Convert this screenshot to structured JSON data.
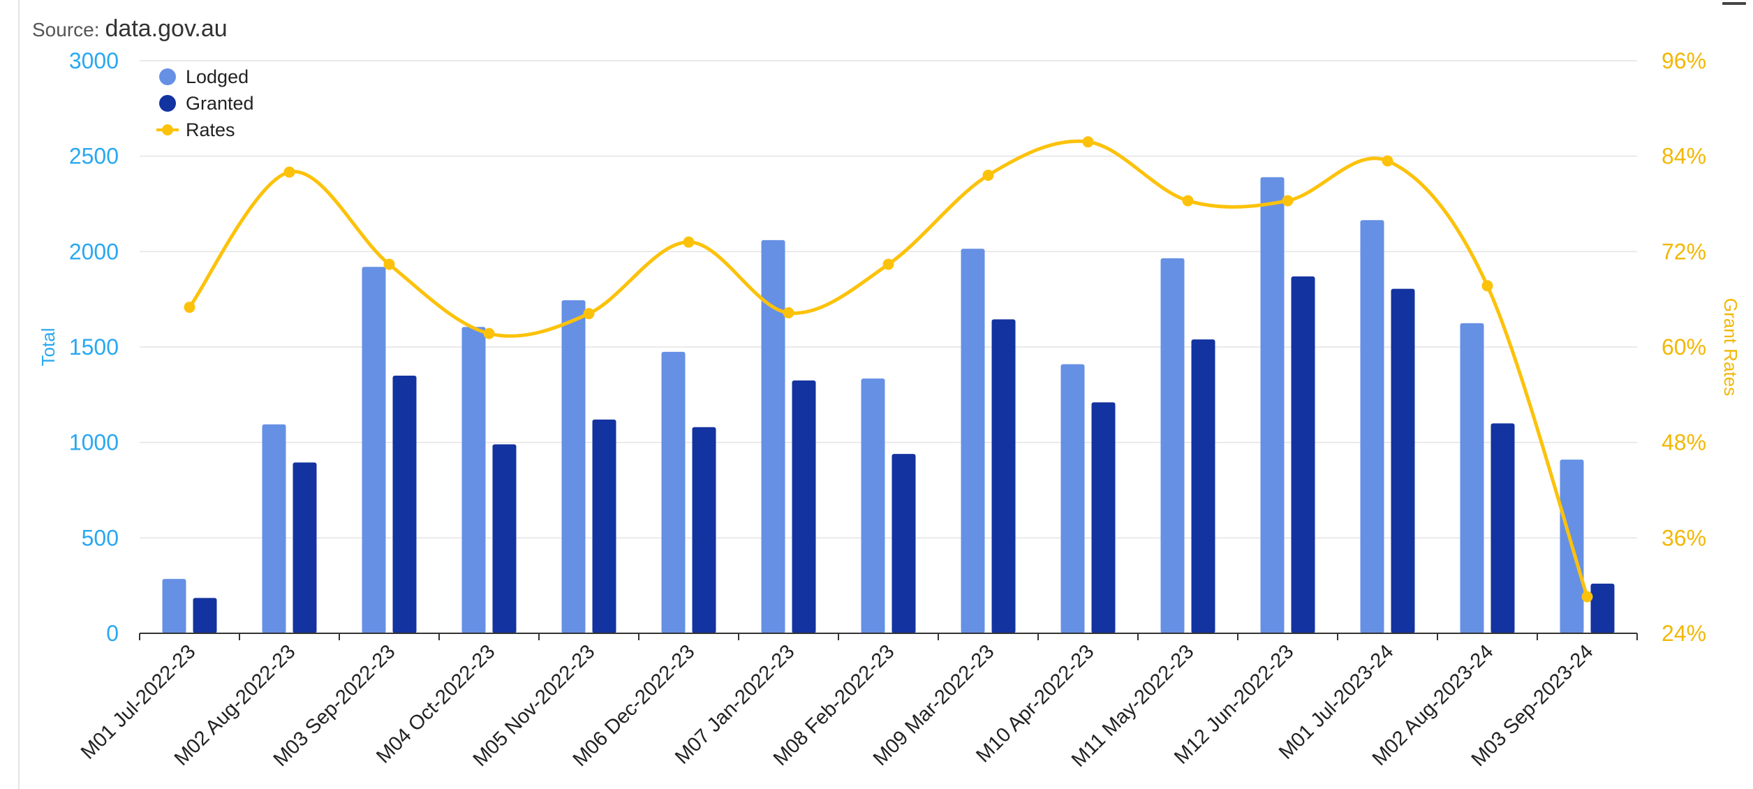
{
  "source_label": "Source:",
  "source_value": "data.gov.au",
  "menu_icon": "hamburger-menu-icon",
  "colors": {
    "lodged": "#6690e4",
    "granted": "#1333a0",
    "rates": "#fcc20b",
    "left_axis": "#29a8f0",
    "right_axis": "#f2b705",
    "grid": "#e3e3e3",
    "axis_line": "#333333",
    "tick_text": "#222222"
  },
  "chart_data": {
    "type": "bar",
    "categories": [
      "M01 Jul-2022-23",
      "M02 Aug-2022-23",
      "M03 Sep-2022-23",
      "M04 Oct-2022-23",
      "M05 Nov-2022-23",
      "M06 Dec-2022-23",
      "M07 Jan-2022-23",
      "M08 Feb-2022-23",
      "M09 Mar-2022-23",
      "M10 Apr-2022-23",
      "M11 May-2022-23",
      "M12 Jun-2022-23",
      "M01 Jul-2023-24",
      "M02 Aug-2023-24",
      "M03 Sep-2023-24"
    ],
    "series": [
      {
        "name": "Lodged",
        "type": "bar",
        "axis": "left",
        "values": [
          285,
          1095,
          1920,
          1605,
          1745,
          1475,
          2060,
          1335,
          2015,
          1410,
          1965,
          2390,
          2165,
          1625,
          910
        ]
      },
      {
        "name": "Granted",
        "type": "bar",
        "axis": "left",
        "values": [
          185,
          895,
          1350,
          990,
          1120,
          1080,
          1325,
          940,
          1645,
          1210,
          1540,
          1870,
          1805,
          1100,
          260
        ]
      },
      {
        "name": "Rates",
        "type": "line",
        "axis": "right",
        "values": [
          65.0,
          82.0,
          70.4,
          61.7,
          64.2,
          73.2,
          64.3,
          70.4,
          81.6,
          85.8,
          78.4,
          78.4,
          83.4,
          67.7,
          28.6
        ]
      }
    ],
    "ylabel": "Total",
    "y2label": "Grant Rates",
    "ylim": [
      0,
      3000
    ],
    "yticks": [
      0,
      500,
      1000,
      1500,
      2000,
      2500,
      3000
    ],
    "y2lim": [
      24,
      96
    ],
    "y2ticks": [
      "24%",
      "36%",
      "48%",
      "60%",
      "72%",
      "84%",
      "96%"
    ],
    "grid": true,
    "legend_position": "top-left"
  }
}
